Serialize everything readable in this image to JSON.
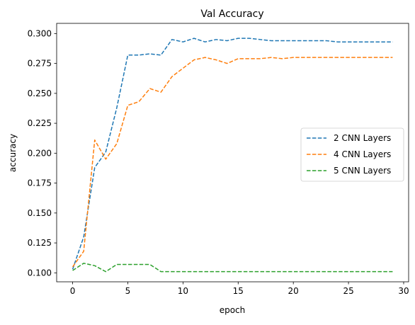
{
  "chart_data": {
    "type": "line",
    "title": "Val Accuracy",
    "xlabel": "epoch",
    "ylabel": "accuracy",
    "xlim": [
      -1.45,
      30.45
    ],
    "ylim": [
      0.0925,
      0.3085
    ],
    "xticks": [
      0,
      5,
      10,
      15,
      20,
      25,
      30
    ],
    "yticks": [
      0.1,
      0.125,
      0.15,
      0.175,
      0.2,
      0.225,
      0.25,
      0.275,
      0.3
    ],
    "ytick_labels": [
      "0.100",
      "0.125",
      "0.150",
      "0.175",
      "0.200",
      "0.225",
      "0.250",
      "0.275",
      "0.300"
    ],
    "grid": false,
    "legend_position": "center-right",
    "x": [
      0,
      1,
      2,
      3,
      4,
      5,
      6,
      7,
      8,
      9,
      10,
      11,
      12,
      13,
      14,
      15,
      16,
      17,
      18,
      19,
      20,
      21,
      22,
      23,
      24,
      25,
      26,
      27,
      28,
      29
    ],
    "series": [
      {
        "name": "2 CNN Layers",
        "color": "#1f77b4",
        "linestyle": "dashed",
        "values": [
          0.103,
          0.13,
          0.188,
          0.201,
          0.238,
          0.282,
          0.282,
          0.283,
          0.282,
          0.295,
          0.293,
          0.296,
          0.293,
          0.295,
          0.294,
          0.296,
          0.296,
          0.295,
          0.294,
          0.294,
          0.294,
          0.294,
          0.294,
          0.294,
          0.293,
          0.293,
          0.293,
          0.293,
          0.293,
          0.293
        ]
      },
      {
        "name": "4 CNN Layers",
        "color": "#ff7f0e",
        "linestyle": "dashed",
        "values": [
          0.105,
          0.118,
          0.211,
          0.195,
          0.208,
          0.24,
          0.243,
          0.254,
          0.251,
          0.264,
          0.271,
          0.278,
          0.28,
          0.278,
          0.275,
          0.279,
          0.279,
          0.279,
          0.28,
          0.279,
          0.28,
          0.28,
          0.28,
          0.28,
          0.28,
          0.28,
          0.28,
          0.28,
          0.28,
          0.28
        ]
      },
      {
        "name": "5 CNN Layers",
        "color": "#2ca02c",
        "linestyle": "dashed",
        "values": [
          0.102,
          0.108,
          0.106,
          0.101,
          0.107,
          0.107,
          0.107,
          0.107,
          0.101,
          0.101,
          0.101,
          0.101,
          0.101,
          0.101,
          0.101,
          0.101,
          0.101,
          0.101,
          0.101,
          0.101,
          0.101,
          0.101,
          0.101,
          0.101,
          0.101,
          0.101,
          0.101,
          0.101,
          0.101,
          0.101
        ]
      }
    ]
  }
}
